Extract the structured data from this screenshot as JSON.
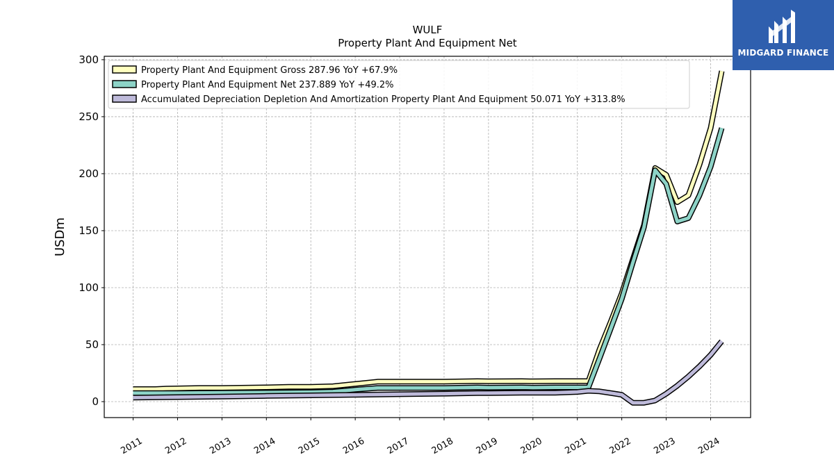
{
  "brand": {
    "name": "MIDGARD FINANCE",
    "bg_color": "#2f5fae"
  },
  "chart_data": {
    "type": "line",
    "title": "WULF",
    "subtitle": "Property Plant And Equipment Net",
    "ylabel": "USDm",
    "xlabel": "",
    "ylim": [
      -14,
      303
    ],
    "xlim": [
      2010.35,
      2024.9
    ],
    "yticks": [
      0,
      50,
      100,
      150,
      200,
      250,
      300
    ],
    "xticks": [
      "2011",
      "2012",
      "2013",
      "2014",
      "2015",
      "2016",
      "2017",
      "2018",
      "2019",
      "2020",
      "2021",
      "2022",
      "2023",
      "2024"
    ],
    "grid": true,
    "legend_position": "top-left",
    "series": [
      {
        "name": "Property Plant And Equipment Gross",
        "legend_label": "Property Plant And Equipment Gross  287.96 YoY +67.9%",
        "color": "#ffffbf",
        "points": [
          [
            2011.0,
            11
          ],
          [
            2011.5,
            11
          ],
          [
            2011.75,
            11.5
          ],
          [
            2012.5,
            12
          ],
          [
            2013.0,
            12
          ],
          [
            2014.0,
            12.5
          ],
          [
            2014.5,
            13
          ],
          [
            2015.0,
            13
          ],
          [
            2015.5,
            13.5
          ],
          [
            2016.0,
            15.5
          ],
          [
            2016.5,
            17.5
          ],
          [
            2017.0,
            17.5
          ],
          [
            2018.0,
            17.5
          ],
          [
            2018.75,
            18
          ],
          [
            2019.0,
            17.8
          ],
          [
            2019.75,
            18
          ],
          [
            2020.0,
            17.8
          ],
          [
            2020.5,
            18
          ],
          [
            2021.25,
            18
          ],
          [
            2021.5,
            46
          ],
          [
            2021.75,
            70
          ],
          [
            2022.0,
            95
          ],
          [
            2022.25,
            125
          ],
          [
            2022.5,
            155
          ],
          [
            2022.75,
            205
          ],
          [
            2023.0,
            199
          ],
          [
            2023.25,
            175
          ],
          [
            2023.5,
            181
          ],
          [
            2023.75,
            208
          ],
          [
            2024.0,
            240
          ],
          [
            2024.25,
            290
          ]
        ]
      },
      {
        "name": "Property Plant And Equipment Net",
        "legend_label": "Property Plant And Equipment Net  237.889 YoY +49.2%",
        "color": "#8dd3c7",
        "points": [
          [
            2011.0,
            7.5
          ],
          [
            2011.5,
            7.5
          ],
          [
            2012.0,
            7.5
          ],
          [
            2013.0,
            7.8
          ],
          [
            2014.0,
            8
          ],
          [
            2015.0,
            8.3
          ],
          [
            2015.5,
            8.8
          ],
          [
            2016.0,
            10.5
          ],
          [
            2016.5,
            12
          ],
          [
            2017.0,
            12
          ],
          [
            2018.0,
            12
          ],
          [
            2018.75,
            12.5
          ],
          [
            2019.0,
            12.3
          ],
          [
            2019.75,
            12.5
          ],
          [
            2020.0,
            12.3
          ],
          [
            2020.5,
            12.5
          ],
          [
            2021.0,
            12.5
          ],
          [
            2021.25,
            12.5
          ],
          [
            2021.5,
            38
          ],
          [
            2021.75,
            64
          ],
          [
            2022.0,
            90
          ],
          [
            2022.25,
            122
          ],
          [
            2022.5,
            153
          ],
          [
            2022.75,
            203
          ],
          [
            2023.0,
            191
          ],
          [
            2023.25,
            158
          ],
          [
            2023.5,
            161
          ],
          [
            2023.75,
            181
          ],
          [
            2024.0,
            206
          ],
          [
            2024.25,
            240
          ]
        ]
      },
      {
        "name": "Accumulated Depreciation Depletion And Amortization Property Plant And Equipment",
        "legend_label": "Accumulated Depreciation Depletion And Amortization Property Plant And Equipment  50.071 YoY +313.8%",
        "color": "#bebada",
        "points": [
          [
            2011.0,
            3.5
          ],
          [
            2012.0,
            4
          ],
          [
            2013.0,
            4.5
          ],
          [
            2014.0,
            5
          ],
          [
            2015.0,
            5.5
          ],
          [
            2016.0,
            6
          ],
          [
            2017.0,
            6.5
          ],
          [
            2018.0,
            7
          ],
          [
            2018.75,
            7.5
          ],
          [
            2019.0,
            7.5
          ],
          [
            2019.75,
            7.8
          ],
          [
            2020.0,
            7.8
          ],
          [
            2020.5,
            7.8
          ],
          [
            2021.0,
            8.5
          ],
          [
            2021.25,
            9.5
          ],
          [
            2021.5,
            9
          ],
          [
            2021.75,
            7.5
          ],
          [
            2022.0,
            6
          ],
          [
            2022.25,
            -1
          ],
          [
            2022.5,
            -1
          ],
          [
            2022.75,
            1
          ],
          [
            2023.0,
            7
          ],
          [
            2023.25,
            14
          ],
          [
            2023.5,
            22
          ],
          [
            2023.75,
            31
          ],
          [
            2024.0,
            41
          ],
          [
            2024.25,
            53
          ]
        ]
      }
    ]
  }
}
